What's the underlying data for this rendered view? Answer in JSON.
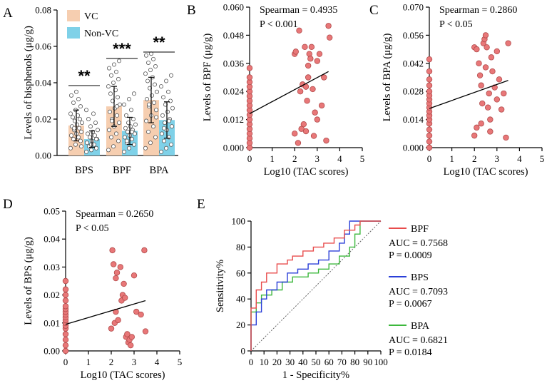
{
  "colors": {
    "vc": "#f6ceb0",
    "nonvc": "#7fd1e8",
    "dot": "#e87778",
    "dot_edge": "#b04a4a",
    "bpf": "#e84c4c",
    "bps": "#2a3fd8",
    "bpa": "#3db83d"
  },
  "chart_data": [
    {
      "panel": "A",
      "type": "bar",
      "ylabel": "Levels of bisphenols  (μg/g)",
      "ylim": [
        0,
        0.08
      ],
      "yticks": [
        "0.00",
        "0.02",
        "0.04",
        "0.06",
        "0.08"
      ],
      "categories": [
        "BPS",
        "BPF",
        "BPA"
      ],
      "legend": [
        "VC",
        "Non-VC"
      ],
      "series": [
        {
          "name": "VC",
          "values": [
            0.0165,
            0.027,
            0.0305
          ],
          "sd": [
            0.0085,
            0.011,
            0.0125
          ]
        },
        {
          "name": "Non-VC",
          "values": [
            0.009,
            0.0135,
            0.0195
          ],
          "sd": [
            0.0045,
            0.0075,
            0.01
          ]
        }
      ],
      "points": {
        "VC": [
          [
            0.004,
            0.006,
            0.008,
            0.009,
            0.01,
            0.011,
            0.012,
            0.013,
            0.014,
            0.015,
            0.016,
            0.017,
            0.018,
            0.019,
            0.02,
            0.021,
            0.022,
            0.023,
            0.025,
            0.027,
            0.029,
            0.031,
            0.033,
            0.035,
            0.005,
            0.015
          ],
          [
            0.003,
            0.005,
            0.008,
            0.01,
            0.012,
            0.014,
            0.016,
            0.018,
            0.02,
            0.022,
            0.024,
            0.026,
            0.028,
            0.03,
            0.032,
            0.034,
            0.036,
            0.038,
            0.04,
            0.042,
            0.044,
            0.046,
            0.048,
            0.05,
            0.052,
            0.019,
            0.027
          ],
          [
            0.004,
            0.007,
            0.01,
            0.013,
            0.016,
            0.019,
            0.022,
            0.025,
            0.027,
            0.029,
            0.031,
            0.033,
            0.035,
            0.037,
            0.039,
            0.041,
            0.043,
            0.045,
            0.047,
            0.049,
            0.051,
            0.053,
            0.055,
            0.056,
            0.021,
            0.028
          ]
        ],
        "Non-VC": [
          [
            0.002,
            0.003,
            0.004,
            0.005,
            0.006,
            0.007,
            0.008,
            0.009,
            0.01,
            0.011,
            0.012,
            0.013,
            0.014,
            0.016,
            0.018,
            0.02,
            0.023,
            0.025,
            0.006,
            0.009
          ],
          [
            0.002,
            0.004,
            0.006,
            0.007,
            0.009,
            0.01,
            0.011,
            0.012,
            0.013,
            0.014,
            0.015,
            0.016,
            0.017,
            0.018,
            0.02,
            0.022,
            0.025,
            0.028,
            0.031,
            0.034,
            0.008,
            0.013
          ],
          [
            0.002,
            0.004,
            0.006,
            0.008,
            0.01,
            0.012,
            0.014,
            0.016,
            0.018,
            0.02,
            0.022,
            0.024,
            0.026,
            0.028,
            0.03,
            0.032,
            0.035,
            0.038,
            0.041,
            0.044,
            0.015,
            0.019
          ]
        ]
      },
      "significance": [
        "**",
        "***",
        "**"
      ]
    },
    {
      "panel": "B",
      "type": "scatter",
      "xlabel": "Log10 (TAC scores)",
      "ylabel": "Levels of BPF (μg/g)",
      "xlim": [
        0,
        5
      ],
      "ylim": [
        0,
        0.06
      ],
      "xticks": [
        "0",
        "1",
        "2",
        "3",
        "4",
        "5"
      ],
      "yticks": [
        "0.000",
        "0.012",
        "0.024",
        "0.036",
        "0.048",
        "0.060"
      ],
      "annotation": [
        "Spearman = 0.4935",
        "P < 0.001"
      ],
      "fit": [
        [
          0,
          0.0145
        ],
        [
          3.5,
          0.0325
        ]
      ],
      "points": [
        [
          0,
          0.0
        ],
        [
          0,
          0.002
        ],
        [
          0,
          0.004
        ],
        [
          0,
          0.006
        ],
        [
          0,
          0.008
        ],
        [
          0,
          0.01
        ],
        [
          0,
          0.012
        ],
        [
          0,
          0.014
        ],
        [
          0,
          0.016
        ],
        [
          0,
          0.018
        ],
        [
          0,
          0.02
        ],
        [
          0,
          0.022
        ],
        [
          0,
          0.024
        ],
        [
          0,
          0.026
        ],
        [
          0,
          0.028
        ],
        [
          0,
          0.03
        ],
        [
          0,
          0.034
        ],
        [
          2.0,
          0.04
        ],
        [
          2.05,
          0.041
        ],
        [
          2.2,
          0.05
        ],
        [
          2.25,
          0.024
        ],
        [
          2.35,
          0.027
        ],
        [
          2.4,
          0.01
        ],
        [
          2.45,
          0.043
        ],
        [
          2.5,
          0.026
        ],
        [
          2.55,
          0.02
        ],
        [
          2.6,
          0.035
        ],
        [
          2.65,
          0.04
        ],
        [
          2.7,
          0.038
        ],
        [
          2.75,
          0.043
        ],
        [
          2.8,
          0.025
        ],
        [
          2.85,
          0.005
        ],
        [
          2.9,
          0.015
        ],
        [
          3.0,
          0.037
        ],
        [
          3.1,
          0.04
        ],
        [
          3.2,
          0.018
        ],
        [
          3.3,
          0.03
        ],
        [
          3.4,
          0.003
        ],
        [
          3.5,
          0.052
        ],
        [
          3.55,
          0.047
        ],
        [
          2.15,
          0.002
        ],
        [
          2.3,
          0.008
        ],
        [
          2.0,
          0.006
        ],
        [
          2.6,
          0.03
        ],
        [
          3.0,
          0.012
        ],
        [
          2.5,
          0.007
        ]
      ]
    },
    {
      "panel": "C",
      "type": "scatter",
      "xlabel": "Log10 (TAC scores)",
      "ylabel": "Levels of BPA (μg/g)",
      "xlim": [
        0,
        5
      ],
      "ylim": [
        0,
        0.07
      ],
      "xticks": [
        "0",
        "1",
        "2",
        "3",
        "4",
        "5"
      ],
      "yticks": [
        "0.000",
        "0.014",
        "0.028",
        "0.042",
        "0.056",
        "0.070"
      ],
      "annotation": [
        "Spearman = 0.2860",
        "P  < 0.05"
      ],
      "fit": [
        [
          0,
          0.0195
        ],
        [
          3.5,
          0.0335
        ]
      ],
      "points": [
        [
          0,
          0.0
        ],
        [
          0,
          0.003
        ],
        [
          0,
          0.006
        ],
        [
          0,
          0.009
        ],
        [
          0,
          0.012
        ],
        [
          0,
          0.014
        ],
        [
          0,
          0.016
        ],
        [
          0,
          0.018
        ],
        [
          0,
          0.02
        ],
        [
          0,
          0.022
        ],
        [
          0,
          0.024
        ],
        [
          0,
          0.026
        ],
        [
          0,
          0.028
        ],
        [
          0,
          0.031
        ],
        [
          0,
          0.034
        ],
        [
          0,
          0.038
        ],
        [
          0,
          0.044
        ],
        [
          2.0,
          0.05
        ],
        [
          2.1,
          0.049
        ],
        [
          2.2,
          0.042
        ],
        [
          2.25,
          0.036
        ],
        [
          2.3,
          0.031
        ],
        [
          2.35,
          0.022
        ],
        [
          2.4,
          0.052
        ],
        [
          2.45,
          0.054
        ],
        [
          2.5,
          0.056
        ],
        [
          2.55,
          0.05
        ],
        [
          2.6,
          0.02
        ],
        [
          2.65,
          0.027
        ],
        [
          2.7,
          0.014
        ],
        [
          2.75,
          0.045
        ],
        [
          2.8,
          0.038
        ],
        [
          2.9,
          0.03
        ],
        [
          3.0,
          0.024
        ],
        [
          3.1,
          0.034
        ],
        [
          3.2,
          0.019
        ],
        [
          3.3,
          0.027
        ],
        [
          3.4,
          0.005
        ],
        [
          3.5,
          0.052
        ],
        [
          2.0,
          0.006
        ],
        [
          2.1,
          0.01
        ],
        [
          2.3,
          0.012
        ],
        [
          2.5,
          0.04
        ],
        [
          2.7,
          0.008
        ],
        [
          3.0,
          0.048
        ]
      ]
    },
    {
      "panel": "D",
      "type": "scatter",
      "xlabel": "Log10 (TAC scores)",
      "ylabel": "Levels of BPS (μg/g)",
      "xlim": [
        0,
        5
      ],
      "ylim": [
        0,
        0.05
      ],
      "xticks": [
        "0",
        "1",
        "2",
        "3",
        "4",
        "5"
      ],
      "yticks": [
        "0.00",
        "0.01",
        "0.02",
        "0.03",
        "0.04",
        "0.05"
      ],
      "annotation": [
        "Spearman = 0.2650",
        "P  < 0.05"
      ],
      "fit": [
        [
          0,
          0.0095
        ],
        [
          3.5,
          0.018
        ]
      ],
      "points": [
        [
          0,
          0.0
        ],
        [
          0,
          0.002
        ],
        [
          0,
          0.004
        ],
        [
          0,
          0.006
        ],
        [
          0,
          0.008
        ],
        [
          0,
          0.009
        ],
        [
          0,
          0.01
        ],
        [
          0,
          0.011
        ],
        [
          0,
          0.012
        ],
        [
          0,
          0.013
        ],
        [
          0,
          0.014
        ],
        [
          0,
          0.015
        ],
        [
          0,
          0.016
        ],
        [
          0,
          0.018
        ],
        [
          0,
          0.02
        ],
        [
          0,
          0.022
        ],
        [
          0,
          0.025
        ],
        [
          2.0,
          0.008
        ],
        [
          2.05,
          0.036
        ],
        [
          2.1,
          0.031
        ],
        [
          2.15,
          0.01
        ],
        [
          2.2,
          0.014
        ],
        [
          2.25,
          0.028
        ],
        [
          2.3,
          0.011
        ],
        [
          2.4,
          0.03
        ],
        [
          2.45,
          0.018
        ],
        [
          2.5,
          0.02
        ],
        [
          2.55,
          0.024
        ],
        [
          2.6,
          0.019
        ],
        [
          2.65,
          0.005
        ],
        [
          2.7,
          0.006
        ],
        [
          2.75,
          0.003
        ],
        [
          2.8,
          0.004
        ],
        [
          2.85,
          0.002
        ],
        [
          2.9,
          0.005
        ],
        [
          3.0,
          0.027
        ],
        [
          3.1,
          0.014
        ],
        [
          3.3,
          0.013
        ],
        [
          3.45,
          0.036
        ],
        [
          3.5,
          0.007
        ],
        [
          2.2,
          0.026
        ]
      ]
    },
    {
      "panel": "E",
      "type": "line",
      "xlabel": "1 - Specificity%",
      "ylabel": "Sensitivity%",
      "xlim": [
        0,
        100
      ],
      "ylim": [
        0,
        100
      ],
      "xticks": [
        "0",
        "10",
        "20",
        "30",
        "40",
        "50",
        "60",
        "70",
        "80",
        "90",
        "100"
      ],
      "yticks": [
        "0",
        "20",
        "40",
        "60",
        "80",
        "100"
      ],
      "reference_line": [
        [
          0,
          0
        ],
        [
          100,
          100
        ]
      ],
      "series": [
        {
          "name": "BPF",
          "auc_label": "AUC = 0.7568",
          "p_label": "P = 0.0009",
          "color_key": "bpf",
          "points": [
            [
              0,
              0
            ],
            [
              0,
              33
            ],
            [
              4,
              33
            ],
            [
              4,
              47
            ],
            [
              8,
              47
            ],
            [
              8,
              53
            ],
            [
              12,
              53
            ],
            [
              12,
              60
            ],
            [
              20,
              60
            ],
            [
              20,
              67
            ],
            [
              28,
              67
            ],
            [
              28,
              70
            ],
            [
              32,
              70
            ],
            [
              32,
              73
            ],
            [
              40,
              73
            ],
            [
              40,
              77
            ],
            [
              48,
              77
            ],
            [
              48,
              80
            ],
            [
              56,
              80
            ],
            [
              56,
              83
            ],
            [
              64,
              83
            ],
            [
              64,
              87
            ],
            [
              72,
              87
            ],
            [
              72,
              93
            ],
            [
              80,
              93
            ],
            [
              80,
              97
            ],
            [
              84,
              97
            ],
            [
              84,
              100
            ],
            [
              100,
              100
            ]
          ]
        },
        {
          "name": "BPS",
          "auc_label": "AUC = 0.7093",
          "p_label": "P = 0.0067",
          "color_key": "bps",
          "points": [
            [
              0,
              0
            ],
            [
              0,
              20
            ],
            [
              4,
              20
            ],
            [
              4,
              30
            ],
            [
              8,
              30
            ],
            [
              8,
              40
            ],
            [
              12,
              40
            ],
            [
              12,
              47
            ],
            [
              20,
              47
            ],
            [
              20,
              53
            ],
            [
              28,
              53
            ],
            [
              28,
              60
            ],
            [
              36,
              60
            ],
            [
              36,
              63
            ],
            [
              44,
              63
            ],
            [
              44,
              67
            ],
            [
              52,
              67
            ],
            [
              52,
              70
            ],
            [
              60,
              70
            ],
            [
              60,
              77
            ],
            [
              68,
              77
            ],
            [
              68,
              83
            ],
            [
              72,
              83
            ],
            [
              72,
              90
            ],
            [
              76,
              90
            ],
            [
              76,
              100
            ],
            [
              100,
              100
            ]
          ]
        },
        {
          "name": "BPA",
          "auc_label": "AUC = 0.6821",
          "p_label": "P = 0.0184",
          "color_key": "bpa",
          "points": [
            [
              0,
              0
            ],
            [
              0,
              30
            ],
            [
              4,
              30
            ],
            [
              4,
              37
            ],
            [
              8,
              37
            ],
            [
              8,
              43
            ],
            [
              16,
              43
            ],
            [
              16,
              47
            ],
            [
              24,
              47
            ],
            [
              24,
              53
            ],
            [
              32,
              53
            ],
            [
              32,
              57
            ],
            [
              44,
              57
            ],
            [
              44,
              60
            ],
            [
              52,
              60
            ],
            [
              52,
              63
            ],
            [
              60,
              63
            ],
            [
              60,
              67
            ],
            [
              68,
              67
            ],
            [
              68,
              73
            ],
            [
              76,
              73
            ],
            [
              76,
              80
            ],
            [
              80,
              80
            ],
            [
              80,
              90
            ],
            [
              84,
              90
            ],
            [
              84,
              100
            ],
            [
              100,
              100
            ]
          ]
        }
      ]
    }
  ]
}
